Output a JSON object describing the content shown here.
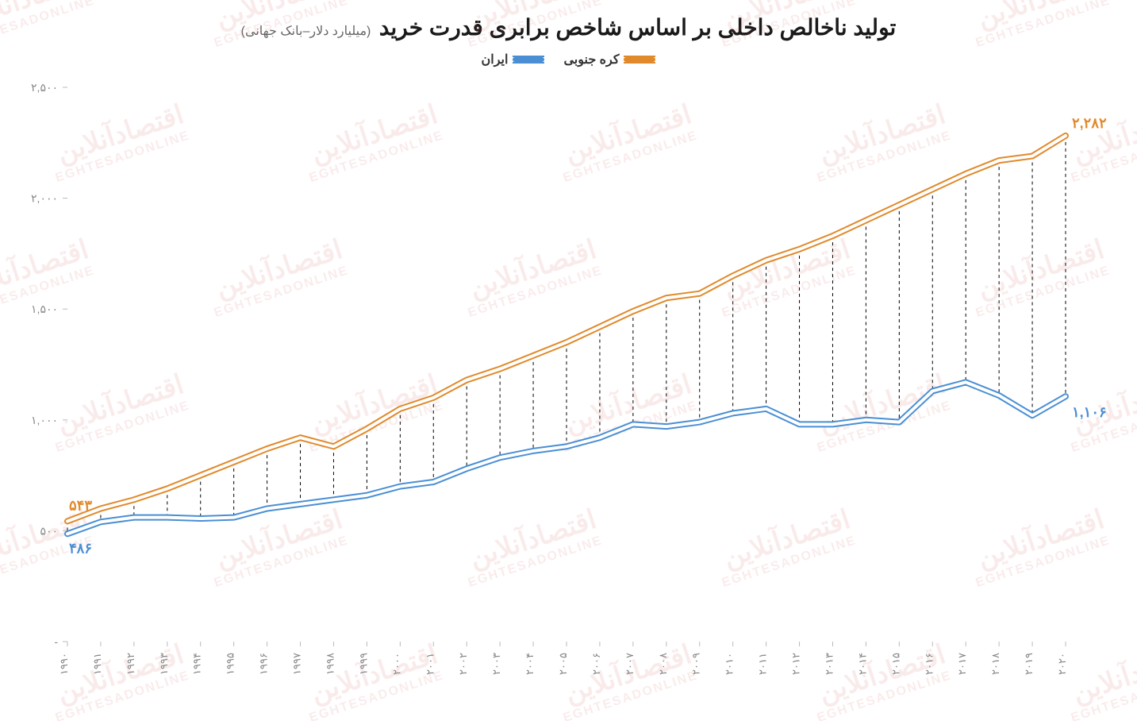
{
  "header": {
    "title": "تولید ناخالص داخلی بر اساس شاخص برابری قدرت خرید",
    "subtitle": "(میلیارد دلار–بانک جهانی)"
  },
  "legend": {
    "items": [
      {
        "label": "کره جنوبی",
        "color": "#e08a2c"
      },
      {
        "label": "ایران",
        "color": "#4a8fd4"
      }
    ]
  },
  "watermark": {
    "text_fa": "اقتصادآنلاین",
    "text_en": "EGHTESADONLINE",
    "color": "#d44a4a"
  },
  "chart": {
    "type": "line",
    "background_color": "#ffffff",
    "ylim": [
      0,
      2500
    ],
    "ytick_step": 500,
    "ytick_labels": [
      "-",
      "۵۰۰",
      "۱,۰۰۰",
      "۱,۵۰۰",
      "۲,۰۰۰",
      "۲,۵۰۰"
    ],
    "ytick_values": [
      0,
      500,
      1000,
      1500,
      2000,
      2500
    ],
    "x_categories_display": [
      "۱۹۹۰",
      "۱۹۹۱",
      "۱۹۹۲",
      "۱۹۹۳",
      "۱۹۹۴",
      "۱۹۹۵",
      "۱۹۹۶",
      "۱۹۹۷",
      "۱۹۹۸",
      "۱۹۹۹",
      "۲۰۰۰",
      "۲۰۰۱",
      "۲۰۰۲",
      "۲۰۰۳",
      "۲۰۰۴",
      "۲۰۰۵",
      "۲۰۰۶",
      "۲۰۰۷",
      "۲۰۰۸",
      "۲۰۰۹",
      "۲۰۱۰",
      "۲۰۱۱",
      "۲۰۱۲",
      "۲۰۱۳",
      "۲۰۱۴",
      "۲۰۱۵",
      "۲۰۱۶",
      "۲۰۱۷",
      "۲۰۱۸",
      "۲۰۱۹",
      "۲۰۲۰"
    ],
    "series": [
      {
        "name": "south_korea",
        "color": "#e08a2c",
        "line_width": 2,
        "double_stroke": true,
        "values": [
          543,
          600,
          640,
          690,
          750,
          810,
          870,
          920,
          880,
          960,
          1050,
          1100,
          1180,
          1230,
          1290,
          1350,
          1420,
          1490,
          1550,
          1570,
          1650,
          1720,
          1770,
          1830,
          1900,
          1970,
          2040,
          2110,
          2170,
          2190,
          2282
        ],
        "start_label": "۵۴۳",
        "end_label": "۲,۲۸۲"
      },
      {
        "name": "iran",
        "color": "#4a8fd4",
        "line_width": 2,
        "double_stroke": true,
        "values": [
          486,
          540,
          560,
          560,
          555,
          560,
          600,
          620,
          640,
          660,
          700,
          720,
          780,
          830,
          860,
          880,
          920,
          980,
          970,
          990,
          1030,
          1050,
          980,
          980,
          1000,
          990,
          1130,
          1170,
          1110,
          1020,
          1106
        ],
        "start_label": "۴۸۶",
        "end_label": "۱,۱۰۶"
      }
    ],
    "drop_lines": {
      "enabled": true,
      "from_series": "south_korea",
      "to_series": "iran",
      "stroke": "#000000",
      "dash": "4 4",
      "width": 1
    },
    "axis_color": "#bbbbbb",
    "tick_font_color": "#888888",
    "title_fontsize": 28,
    "subtitle_fontsize": 16,
    "label_fontsize": 14
  }
}
